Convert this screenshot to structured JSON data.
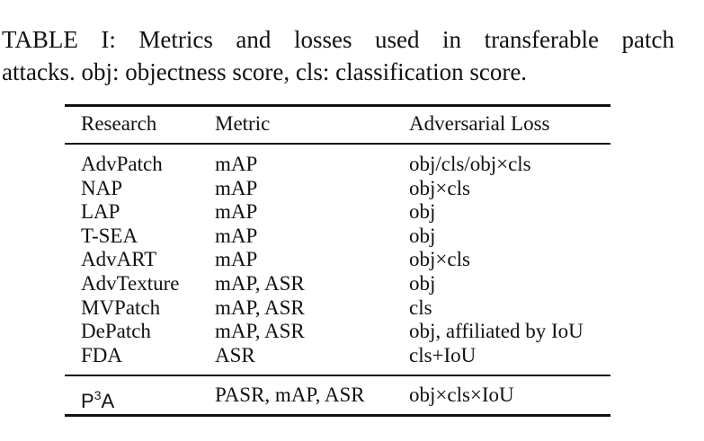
{
  "caption": {
    "line1": "TABLE I: Metrics and losses used in transferable patch",
    "line2": "attacks. obj: objectness score, cls: classification score."
  },
  "table": {
    "headers": [
      "Research",
      "Metric",
      "Adversarial Loss"
    ],
    "rows": [
      {
        "research": "AdvPatch",
        "metric": "mAP",
        "loss": "obj/cls/obj×cls"
      },
      {
        "research": "NAP",
        "metric": "mAP",
        "loss": "obj×cls"
      },
      {
        "research": "LAP",
        "metric": "mAP",
        "loss": "obj"
      },
      {
        "research": "T-SEA",
        "metric": "mAP",
        "loss": "obj"
      },
      {
        "research": "AdvART",
        "metric": "mAP",
        "loss": "obj×cls"
      },
      {
        "research": "AdvTexture",
        "metric": "mAP, ASR",
        "loss": "obj"
      },
      {
        "research": "MVPatch",
        "metric": "mAP, ASR",
        "loss": "cls"
      },
      {
        "research": "DePatch",
        "metric": "mAP, ASR",
        "loss": "obj, affiliated by IoU"
      },
      {
        "research": "FDA",
        "metric": "ASR",
        "loss": "cls+IoU"
      }
    ],
    "final_row": {
      "research_base": "P",
      "research_sup": "3",
      "research_tail": "A",
      "metric": "PASR, mAP, ASR",
      "loss": "obj×cls×IoU"
    }
  }
}
